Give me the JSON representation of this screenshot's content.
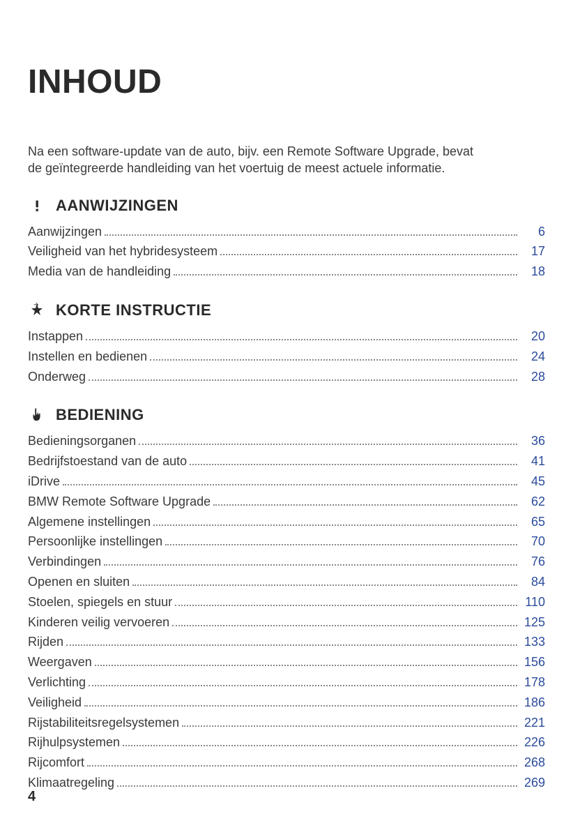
{
  "title": "INHOUD",
  "intro": "Na een software-update van de auto, bijv. een Remote Software Upgrade, bevat de geïntegreerde handleiding van het voertuig de meest actuele informatie.",
  "page_number": "4",
  "colors": {
    "text": "#3a3a3a",
    "heading": "#2a2a2a",
    "link": "#2b4b9b",
    "dots": "#888888",
    "background": "#ffffff"
  },
  "typography": {
    "title_fontsize": 48,
    "section_fontsize": 22,
    "body_fontsize": 18,
    "font_family": "Arial"
  },
  "sections": [
    {
      "icon": "exclamation",
      "title": "AANWIJZINGEN",
      "entries": [
        {
          "label": "Aanwijzingen",
          "page": "6"
        },
        {
          "label": "Veiligheid van het hybridesysteem",
          "page": "17"
        },
        {
          "label": "Media van de handleiding",
          "page": "18"
        }
      ]
    },
    {
      "icon": "star-arrow",
      "title": "KORTE INSTRUCTIE",
      "entries": [
        {
          "label": "Instappen",
          "page": "20"
        },
        {
          "label": "Instellen en bedienen",
          "page": "24"
        },
        {
          "label": "Onderweg",
          "page": "28"
        }
      ]
    },
    {
      "icon": "hand-pointer",
      "title": "BEDIENING",
      "entries": [
        {
          "label": "Bedieningsorganen",
          "page": "36"
        },
        {
          "label": "Bedrijfstoestand van de auto",
          "page": "41"
        },
        {
          "label": "iDrive",
          "page": "45"
        },
        {
          "label": "BMW Remote Software Upgrade",
          "page": "62"
        },
        {
          "label": "Algemene instellingen",
          "page": "65"
        },
        {
          "label": "Persoonlijke instellingen",
          "page": "70"
        },
        {
          "label": "Verbindingen",
          "page": "76"
        },
        {
          "label": "Openen en sluiten",
          "page": "84"
        },
        {
          "label": "Stoelen, spiegels en stuur",
          "page": "110"
        },
        {
          "label": "Kinderen veilig vervoeren",
          "page": "125"
        },
        {
          "label": "Rijden",
          "page": "133"
        },
        {
          "label": "Weergaven",
          "page": "156"
        },
        {
          "label": "Verlichting",
          "page": "178"
        },
        {
          "label": "Veiligheid",
          "page": "186"
        },
        {
          "label": "Rijstabiliteitsregelsystemen",
          "page": "221"
        },
        {
          "label": "Rijhulpsystemen",
          "page": "226"
        },
        {
          "label": "Rijcomfort",
          "page": "268"
        },
        {
          "label": "Klimaatregeling",
          "page": "269"
        }
      ]
    }
  ]
}
